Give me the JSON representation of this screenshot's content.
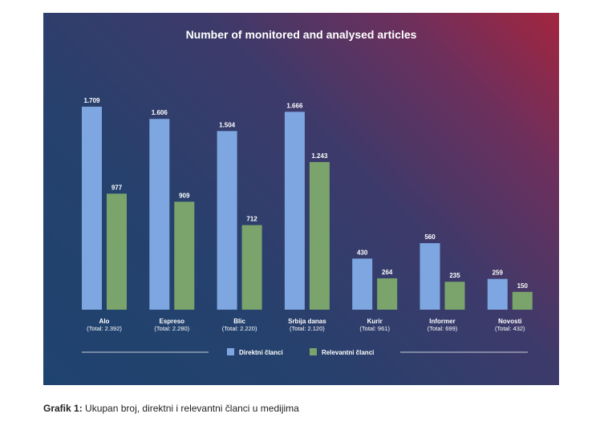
{
  "caption": {
    "label": "Grafik 1:",
    "text": "Ukupan broj, direktni i relevantni članci u medijima"
  },
  "colors": {
    "direct": "#7ea7e2",
    "relevant": "#7aa46c"
  },
  "chart_data": {
    "type": "bar",
    "title": "Number of monitored and analysed articles",
    "categories": [
      "Alo",
      "Espreso",
      "Blic",
      "Srbija danas",
      "Kurir",
      "Informer",
      "Novosti"
    ],
    "totals": [
      "(Total: 2.392)",
      "(Total: 2.280)",
      "(Total: 2.220)",
      "(Total: 2.120)",
      "(Total: 961)",
      "(Total: 699)",
      "(Total: 432)"
    ],
    "series": [
      {
        "name": "Direktni članci",
        "values": [
          1709,
          1606,
          1504,
          1666,
          430,
          560,
          259
        ],
        "labels": [
          "1.709",
          "1.606",
          "1.504",
          "1.666",
          "430",
          "560",
          "259"
        ]
      },
      {
        "name": "Relevantni članci",
        "values": [
          977,
          909,
          712,
          1243,
          264,
          235,
          150
        ],
        "labels": [
          "977",
          "909",
          "712",
          "1.243",
          "264",
          "235",
          "150"
        ]
      }
    ],
    "ylim": [
      0,
      1709
    ],
    "legend": "bottom",
    "grid": false
  }
}
